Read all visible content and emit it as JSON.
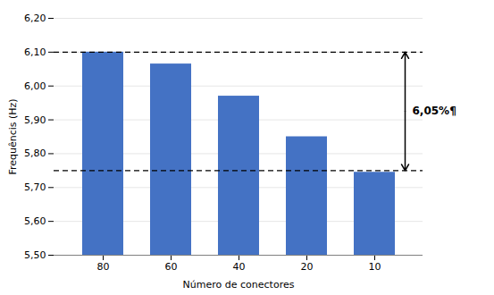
{
  "chart_data": {
    "type": "bar",
    "categories": [
      "80",
      "60",
      "40",
      "20",
      "10"
    ],
    "values": [
      6.1,
      6.065,
      5.97,
      5.85,
      5.745
    ],
    "color": "#4472C4",
    "ylim": [
      5.5,
      6.2
    ],
    "yticks": [
      {
        "value": 5.5,
        "label": "5,50"
      },
      {
        "value": 5.6,
        "label": "5,60"
      },
      {
        "value": 5.7,
        "label": "5,70"
      },
      {
        "value": 5.8,
        "label": "5,80"
      },
      {
        "value": 5.9,
        "label": "5,90"
      },
      {
        "value": 6.0,
        "label": "6,00"
      },
      {
        "value": 6.1,
        "label": "6,10"
      },
      {
        "value": 6.2,
        "label": "6,20"
      }
    ],
    "xlabel": "Número de conectores",
    "ylabel": "Frequêncis (Hz)",
    "hlines": [
      6.1,
      5.75
    ],
    "annotation": "6,05%¶",
    "grid": true
  }
}
